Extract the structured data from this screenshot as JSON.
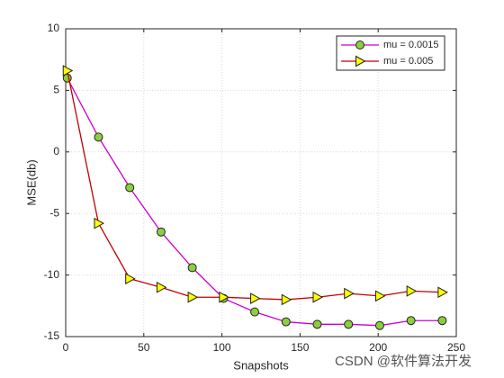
{
  "chart_data": {
    "type": "line",
    "xlabel": "Snapshots",
    "ylabel": "MSE(db)",
    "x": [
      1,
      21,
      41,
      61,
      81,
      101,
      121,
      141,
      161,
      181,
      201,
      221,
      241
    ],
    "series": [
      {
        "name": "mu = 0.0015",
        "color": "#cc00cc",
        "marker": "o",
        "marker_color": "#8ccf3c",
        "values": [
          6.0,
          1.2,
          -2.9,
          -6.5,
          -9.4,
          -11.9,
          -13.0,
          -13.8,
          -14.0,
          -14.0,
          -14.1,
          -13.7,
          -13.7
        ]
      },
      {
        "name": "mu = 0.005",
        "color": "#c00000",
        "marker": ">",
        "marker_color": "#ffff00",
        "values": [
          6.6,
          -5.8,
          -10.3,
          -11.0,
          -11.8,
          -11.8,
          -11.9,
          -12.0,
          -11.8,
          -11.5,
          -11.7,
          -11.3,
          -11.4
        ]
      }
    ],
    "xlim": [
      0,
      250
    ],
    "xticks": [
      0,
      50,
      100,
      150,
      200,
      250
    ],
    "ylim": [
      -15,
      10
    ],
    "yticks": [
      -15,
      -10,
      -5,
      0,
      5,
      10
    ],
    "grid": true,
    "legend": "upper right",
    "watermark": "CSDN @软件算法开发"
  }
}
